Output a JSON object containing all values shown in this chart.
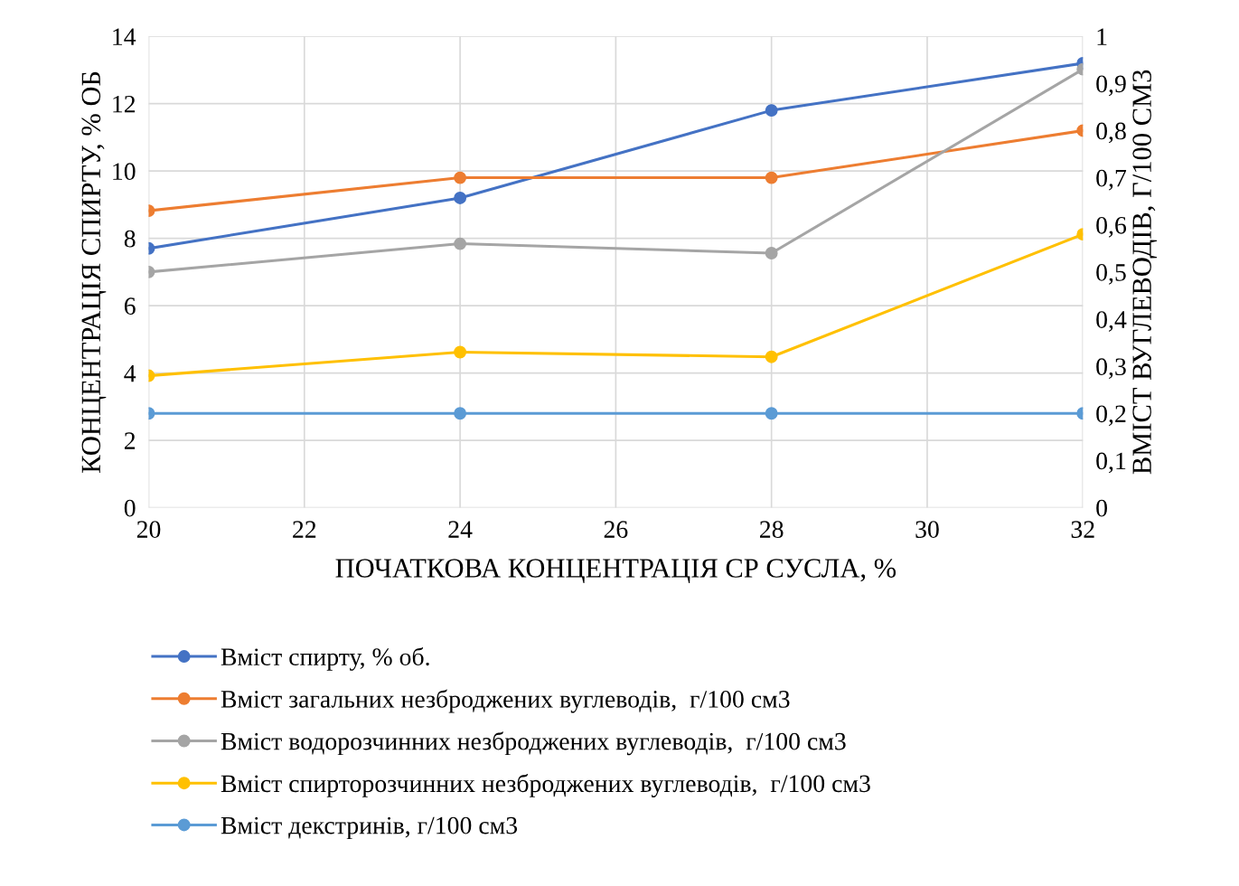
{
  "chart_data": {
    "type": "line",
    "xlabel": "ПОЧАТКОВА КОНЦЕНТРАЦІЯ СР СУСЛА, %",
    "ylabel": "КОНЦЕНТРАЦІЯ СПИРТУ, % ОБ",
    "y2label": "ВМІСТ ВУГЛЕВОДІВ, Г/100 СМ3",
    "x": [
      20,
      24,
      28,
      32
    ],
    "series": [
      {
        "name": "Вміст спирту, % об.",
        "color": "#4472c4",
        "values": [
          7.7,
          9.2,
          11.8,
          13.2
        ]
      },
      {
        "name": "Вміст загальних незброджених вуглеводів,  г/100 см3",
        "color": "#ed7d31",
        "values": [
          0.63,
          0.7,
          0.7,
          0.8
        ],
        "axis": "y2"
      },
      {
        "name": "Вміст водорозчинних незброджених вуглеводів,  г/100 см3",
        "color": "#a5a5a5",
        "values": [
          0.5,
          0.56,
          0.54,
          0.93
        ],
        "axis": "y2"
      },
      {
        "name": "Вміст спирторозчинних незброджених вуглеводів,  г/100 см3",
        "color": "#ffc000",
        "values": [
          0.28,
          0.33,
          0.32,
          0.58
        ],
        "axis": "y2"
      },
      {
        "name": "Вміст декстринів, г/100 см3",
        "color": "#5b9bd5",
        "values": [
          0.2,
          0.2,
          0.2,
          0.2
        ],
        "axis": "y2"
      }
    ],
    "xlim": [
      20,
      32
    ],
    "xticks": [
      20,
      22,
      24,
      26,
      28,
      30,
      32
    ],
    "ylim": [
      0,
      14
    ],
    "yticks": [
      0,
      2,
      4,
      6,
      8,
      10,
      12,
      14
    ],
    "y2lim": [
      0,
      1
    ],
    "y2ticks": [
      0,
      {
        "value": 0.1,
        "label": "0,1"
      },
      {
        "value": 0.2,
        "label": "0,2"
      },
      {
        "value": 0.3,
        "label": "0,3"
      },
      {
        "value": 0.4,
        "label": "0,4"
      },
      {
        "value": 0.5,
        "label": "0,5"
      },
      {
        "value": 0.6,
        "label": "0,6"
      },
      {
        "value": 0.7,
        "label": "0,7"
      },
      {
        "value": 0.8,
        "label": "0,8"
      },
      {
        "value": 0.9,
        "label": "0,9"
      },
      1
    ],
    "grid": true,
    "legend": "bottom",
    "marker": "circle",
    "line_style": "solid"
  }
}
